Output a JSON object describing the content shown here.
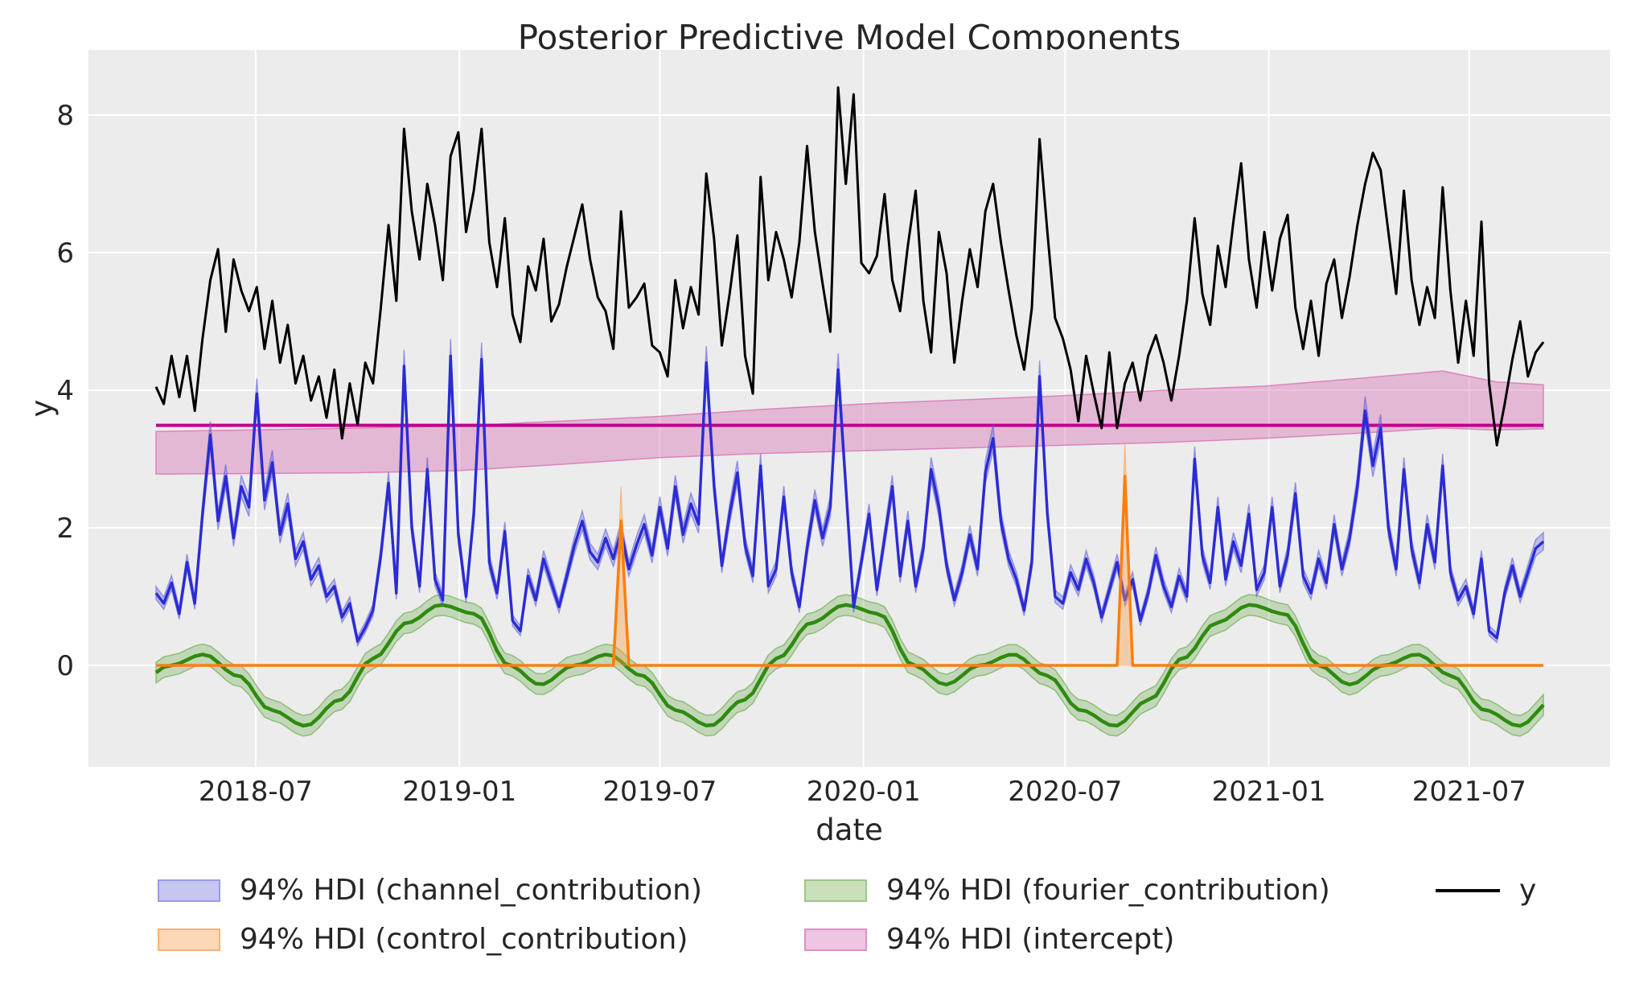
{
  "title": "Posterior Predictive Model Components",
  "axes": {
    "xlabel": "date",
    "ylabel": "y",
    "yticks": [
      0,
      2,
      4,
      6,
      8
    ],
    "xticks": [
      {
        "label": "2018-07",
        "date": "2018-07-01"
      },
      {
        "label": "2019-01",
        "date": "2019-01-01"
      },
      {
        "label": "2019-07",
        "date": "2019-07-01"
      },
      {
        "label": "2020-01",
        "date": "2020-01-01"
      },
      {
        "label": "2020-07",
        "date": "2020-07-01"
      },
      {
        "label": "2021-01",
        "date": "2021-01-01"
      },
      {
        "label": "2021-07",
        "date": "2021-07-01"
      }
    ]
  },
  "legend": {
    "items": [
      {
        "label": "94% HDI (channel_contribution)",
        "type": "patch",
        "fill": "#c6c6f1",
        "stroke": "#9a9ae4"
      },
      {
        "label": "94% HDI (control_contribution)",
        "type": "patch",
        "fill": "#fbd9b8",
        "stroke": "#f5b176"
      },
      {
        "label": "94% HDI (fourier_contribution)",
        "type": "patch",
        "fill": "#c9e0bb",
        "stroke": "#9cc787"
      },
      {
        "label": "94% HDI (intercept)",
        "type": "patch",
        "fill": "#efc5e2",
        "stroke": "#dc8fc7"
      },
      {
        "label": "y",
        "type": "line",
        "stroke": "#000000"
      }
    ]
  },
  "colors": {
    "plot_bg": "#ececec",
    "grid": "#ffffff",
    "y_line": "#000000",
    "channel_line": "#2b2bd5",
    "channel_fill": "rgba(90,90,220,0.32)",
    "channel_edge": "rgba(90,90,220,0.55)",
    "control_line": "#f97f0e",
    "control_fill": "rgba(249,158,70,0.40)",
    "control_edge": "rgba(249,158,70,0.65)",
    "fourier_line": "#2e8b0e",
    "fourier_fill": "rgba(85,160,50,0.28)",
    "fourier_edge": "rgba(85,160,50,0.55)",
    "intercept_line": "#c2008b",
    "intercept_fill": "rgba(214,108,177,0.40)",
    "intercept_edge": "rgba(214,108,177,0.75)",
    "text": "#262626"
  },
  "chart_data": {
    "type": "line",
    "title": "Posterior Predictive Model Components",
    "xlabel": "date",
    "ylabel": "y",
    "x_start": "2018-04-02",
    "freq_days": 7,
    "n_points": 180,
    "ylim": [
      -1.47,
      8.95
    ],
    "grid": true,
    "legend_position": "below",
    "series": [
      {
        "name": "y",
        "kind": "line",
        "values": [
          4.05,
          3.8,
          4.5,
          3.9,
          4.5,
          3.7,
          4.75,
          5.6,
          6.05,
          4.85,
          5.9,
          5.45,
          5.15,
          5.5,
          4.6,
          5.3,
          4.4,
          4.95,
          4.1,
          4.5,
          3.85,
          4.2,
          3.6,
          4.3,
          3.3,
          4.1,
          3.5,
          4.4,
          4.1,
          5.2,
          6.4,
          5.3,
          7.8,
          6.6,
          5.9,
          7.0,
          6.4,
          5.6,
          7.4,
          7.75,
          6.3,
          6.9,
          7.8,
          6.15,
          5.5,
          6.5,
          5.1,
          4.7,
          5.8,
          5.45,
          6.2,
          5.0,
          5.25,
          5.8,
          6.25,
          6.7,
          5.9,
          5.35,
          5.15,
          4.6,
          6.6,
          5.2,
          5.35,
          5.55,
          4.65,
          4.55,
          4.2,
          5.6,
          4.9,
          5.5,
          5.1,
          7.15,
          6.2,
          4.65,
          5.4,
          6.25,
          4.5,
          3.95,
          7.1,
          5.6,
          6.3,
          5.9,
          5.35,
          6.15,
          7.55,
          6.3,
          5.55,
          4.85,
          8.4,
          7.0,
          8.3,
          5.85,
          5.7,
          5.95,
          6.85,
          5.6,
          5.15,
          6.1,
          6.9,
          5.3,
          4.55,
          6.3,
          5.7,
          4.4,
          5.3,
          6.05,
          5.5,
          6.6,
          7.0,
          6.15,
          5.45,
          4.8,
          4.3,
          5.2,
          7.65,
          6.3,
          5.05,
          4.75,
          4.3,
          3.55,
          4.5,
          3.95,
          3.45,
          4.55,
          3.45,
          4.1,
          4.4,
          3.85,
          4.5,
          4.8,
          4.4,
          3.85,
          4.5,
          5.3,
          6.5,
          5.4,
          4.95,
          6.1,
          5.5,
          6.45,
          7.3,
          5.9,
          5.2,
          6.3,
          5.45,
          6.2,
          6.55,
          5.2,
          4.6,
          5.3,
          4.5,
          5.55,
          5.9,
          5.05,
          5.65,
          6.4,
          7.0,
          7.45,
          7.2,
          6.3,
          5.4,
          6.9,
          5.6,
          4.95,
          5.5,
          5.05,
          6.95,
          5.45,
          4.4,
          5.3,
          4.5,
          6.45,
          4.1,
          3.2,
          3.8,
          4.45,
          5.0,
          4.2,
          4.55,
          4.7
        ]
      },
      {
        "name": "channel_contribution",
        "kind": "line_hdi",
        "hdi_halfwidth_base": 0.055,
        "hdi_halfwidth_frac": 0.042,
        "values": [
          1.05,
          0.9,
          1.2,
          0.75,
          1.5,
          0.9,
          2.2,
          3.35,
          2.1,
          2.75,
          1.85,
          2.6,
          2.3,
          3.95,
          2.4,
          2.95,
          1.9,
          2.35,
          1.55,
          1.8,
          1.25,
          1.45,
          1.0,
          1.15,
          0.7,
          0.9,
          0.35,
          0.55,
          0.8,
          1.6,
          2.65,
          1.05,
          4.35,
          2.0,
          1.15,
          2.85,
          1.25,
          0.95,
          4.5,
          1.9,
          1.0,
          2.2,
          4.45,
          1.5,
          1.05,
          1.95,
          0.65,
          0.5,
          1.3,
          0.95,
          1.55,
          1.2,
          0.85,
          1.3,
          1.75,
          2.1,
          1.65,
          1.5,
          1.85,
          1.55,
          1.95,
          1.4,
          1.75,
          2.05,
          1.6,
          2.3,
          1.7,
          2.6,
          1.9,
          2.35,
          2.05,
          4.4,
          2.6,
          1.45,
          2.2,
          2.8,
          1.75,
          1.3,
          2.9,
          1.15,
          1.4,
          2.45,
          1.35,
          0.85,
          1.7,
          2.4,
          1.85,
          2.3,
          4.3,
          2.6,
          0.85,
          1.5,
          2.2,
          1.1,
          1.85,
          2.6,
          1.3,
          2.1,
          1.15,
          1.7,
          2.85,
          2.3,
          1.45,
          0.95,
          1.35,
          1.9,
          1.4,
          2.8,
          3.3,
          2.1,
          1.55,
          1.25,
          0.8,
          1.5,
          4.2,
          2.2,
          1.0,
          0.9,
          1.35,
          1.1,
          1.55,
          1.2,
          0.7,
          1.1,
          1.5,
          0.95,
          1.25,
          0.65,
          1.05,
          1.6,
          1.15,
          0.85,
          1.3,
          1.0,
          3.0,
          1.6,
          1.2,
          2.3,
          1.25,
          1.8,
          1.45,
          2.2,
          1.1,
          1.35,
          2.3,
          1.15,
          1.6,
          2.5,
          1.3,
          1.05,
          1.55,
          1.2,
          2.05,
          1.4,
          1.85,
          2.6,
          3.7,
          2.9,
          3.45,
          2.0,
          1.4,
          2.85,
          1.7,
          1.2,
          2.05,
          1.5,
          2.9,
          1.35,
          0.95,
          1.15,
          0.75,
          1.55,
          0.5,
          0.4,
          1.05,
          1.45,
          1.0,
          1.35,
          1.7,
          1.8
        ]
      },
      {
        "name": "control_contribution",
        "kind": "spikes_hdi",
        "baseline": 0,
        "spikes": [
          {
            "week_index": 60,
            "approx_date": "2019-05-27",
            "peak": 2.1,
            "hdi_peak": 2.6
          },
          {
            "week_index": 125,
            "approx_date": "2020-08-24",
            "peak": 2.75,
            "hdi_peak": 3.25
          }
        ]
      },
      {
        "name": "fourier_contribution",
        "kind": "seasonal_hdi",
        "monthly_values": [
          0.75,
          0.0,
          -0.28,
          0.0,
          0.16,
          -0.15,
          -0.65,
          -0.88,
          -0.5,
          0.1,
          0.62,
          0.88
        ],
        "hdi_halfwidth": 0.15
      },
      {
        "name": "intercept",
        "kind": "flat_hdi",
        "mean": 3.49,
        "hdi_nodes": [
          [
            0,
            2.78,
            3.4
          ],
          [
            26,
            2.8,
            3.45
          ],
          [
            39,
            2.83,
            3.48
          ],
          [
            52,
            2.92,
            3.55
          ],
          [
            65,
            3.02,
            3.62
          ],
          [
            78,
            3.08,
            3.72
          ],
          [
            91,
            3.12,
            3.8
          ],
          [
            104,
            3.16,
            3.86
          ],
          [
            117,
            3.2,
            3.92
          ],
          [
            130,
            3.24,
            4.0
          ],
          [
            143,
            3.3,
            4.06
          ],
          [
            156,
            3.38,
            4.18
          ],
          [
            166,
            3.45,
            4.28
          ],
          [
            173,
            3.42,
            4.12
          ],
          [
            179,
            3.44,
            4.08
          ]
        ]
      }
    ]
  }
}
